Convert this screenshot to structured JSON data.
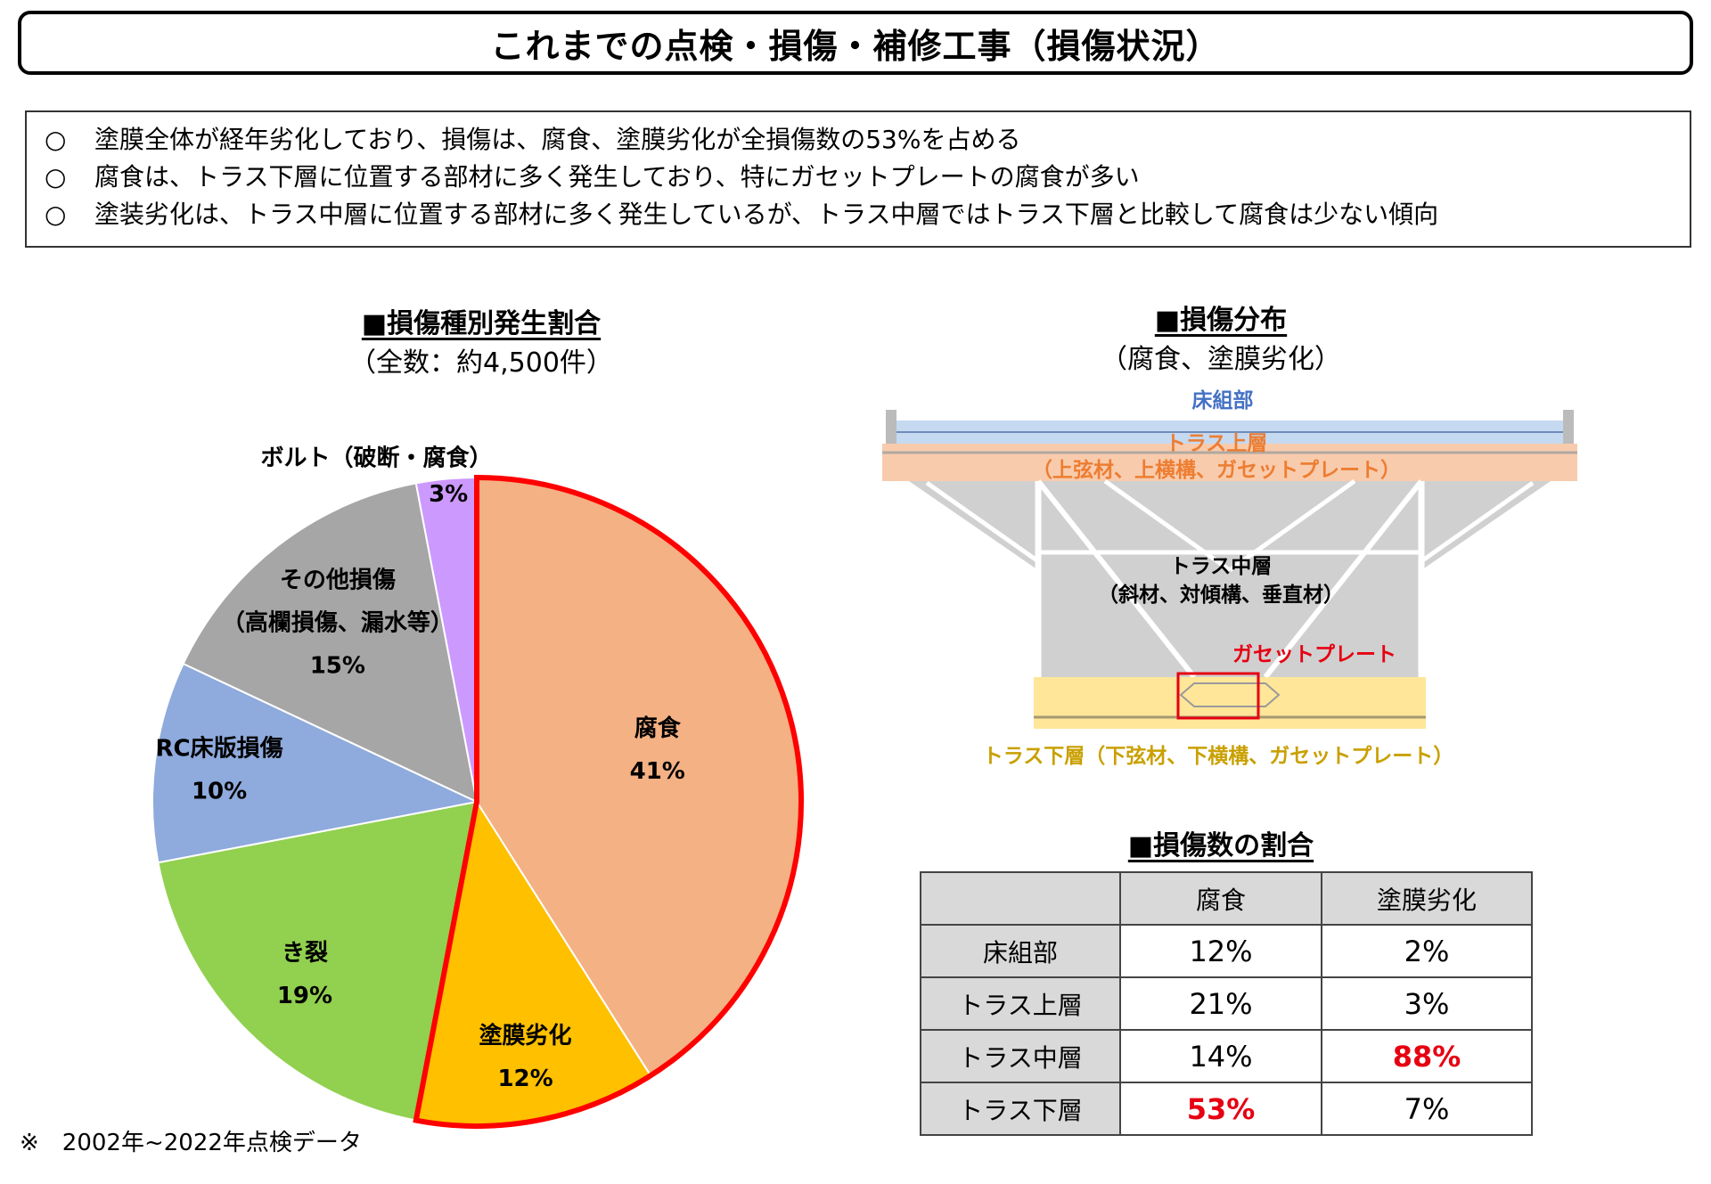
{
  "title": "これまでの点検・損傷・補修工事（損傷状況）",
  "summary": {
    "bullet": "○",
    "lines": [
      "塗膜全体が経年劣化しており、損傷は、腐食、塗膜劣化が全損傷数の53%を占める",
      "腐食は、トラス下層に位置する部材に多く発生しており、特にガセットプレートの腐食が多い",
      "塗装劣化は、トラス中層に位置する部材に多く発生しているが、トラス中層ではトラス下層と比較して腐食は少ない傾向"
    ]
  },
  "pie_section": {
    "heading": "■損傷種別発生割合",
    "subheading": "（全数：約4,500件）"
  },
  "chart_data": {
    "type": "pie",
    "title": "■損傷種別発生割合",
    "subtitle": "（全数：約4,500件）",
    "slices": [
      {
        "label": "腐食",
        "value": 41,
        "display": "41%",
        "color": "#f4b183"
      },
      {
        "label": "塗膜劣化",
        "value": 12,
        "display": "12%",
        "color": "#ffc000"
      },
      {
        "label": "き裂",
        "value": 19,
        "display": "19%",
        "color": "#92d050"
      },
      {
        "label": "RC床版損傷",
        "value": 10,
        "display": "10%",
        "color": "#8faadc"
      },
      {
        "label": "その他損傷\n（高欄損傷、漏水等）",
        "value": 15,
        "display": "15%",
        "color": "#a6a6a6"
      },
      {
        "label": "ボルト（破断・腐食）",
        "value": 3,
        "display": "3%",
        "color": "#cc99ff"
      }
    ],
    "highlight": {
      "slices": [
        "腐食",
        "塗膜劣化"
      ],
      "color": "#ff0000"
    }
  },
  "bridge_section": {
    "heading": "■損傷分布",
    "subheading": "（腐食、塗膜劣化）",
    "labels": {
      "floor": "床組部",
      "upper": "トラス上層",
      "upper_sub": "（上弦材、上横構、ガセットプレート）",
      "middle": "トラス中層",
      "middle_sub": "（斜材、対傾構、垂直材）",
      "gusset": "ガセットプレート",
      "lower": "トラス下層（下弦材、下横構、ガセットプレート）"
    },
    "colors": {
      "floor": "#4472c4",
      "upper": "#ed7d31",
      "lower": "#c9a000",
      "gusset": "#e60012"
    }
  },
  "ratio_section": {
    "heading": "■損傷数の割合",
    "columns": [
      "",
      "腐食",
      "塗膜劣化"
    ],
    "rows": [
      {
        "label": "床組部",
        "corrosion": "12%",
        "coating": "2%"
      },
      {
        "label": "トラス上層",
        "corrosion": "21%",
        "coating": "3%"
      },
      {
        "label": "トラス中層",
        "corrosion": "14%",
        "coating": "88%"
      },
      {
        "label": "トラス下層",
        "corrosion": "53%",
        "coating": "7%"
      }
    ]
  },
  "footnote": "※　2002年~2022年点検データ"
}
